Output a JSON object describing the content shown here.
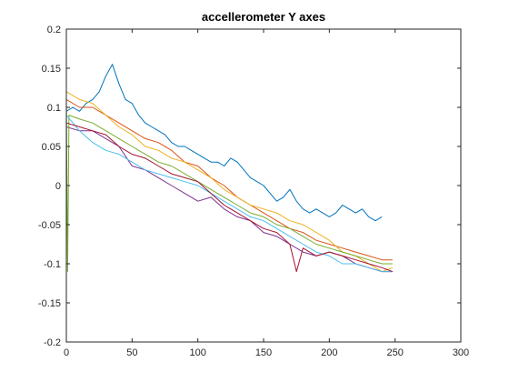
{
  "chart_data": {
    "type": "line",
    "title": "accellerometer Y axes",
    "xlabel": "",
    "ylabel": "",
    "xlim": [
      0,
      300
    ],
    "ylim": [
      -0.2,
      0.2
    ],
    "xticks": [
      0,
      50,
      100,
      150,
      200,
      250,
      300
    ],
    "yticks": [
      -0.2,
      -0.15,
      -0.1,
      -0.05,
      0,
      0.05,
      0.1,
      0.15,
      0.2
    ],
    "ytick_labels": [
      "-0.2",
      "-0.15",
      "-0.1",
      "-0.05",
      "0",
      "0.05",
      "0.1",
      "0.15",
      "0.2"
    ],
    "grid": false,
    "legend": "none",
    "series": [
      {
        "color": "#0072BD",
        "x": [
          0,
          5,
          10,
          15,
          20,
          25,
          30,
          35,
          40,
          45,
          50,
          55,
          60,
          65,
          70,
          75,
          80,
          85,
          90,
          95,
          100,
          105,
          110,
          115,
          120,
          125,
          130,
          135,
          140,
          145,
          150,
          155,
          160,
          165,
          170,
          175,
          180,
          185,
          190,
          195,
          200,
          205,
          210,
          215,
          220,
          225,
          230,
          235,
          240
        ],
        "y": [
          0.095,
          0.1,
          0.095,
          0.105,
          0.11,
          0.12,
          0.14,
          0.155,
          0.13,
          0.11,
          0.105,
          0.09,
          0.08,
          0.075,
          0.07,
          0.065,
          0.055,
          0.05,
          0.05,
          0.045,
          0.04,
          0.035,
          0.03,
          0.03,
          0.025,
          0.035,
          0.03,
          0.02,
          0.01,
          0.005,
          0.0,
          -0.01,
          -0.02,
          -0.015,
          -0.005,
          -0.02,
          -0.03,
          -0.035,
          -0.03,
          -0.035,
          -0.04,
          -0.035,
          -0.025,
          -0.03,
          -0.035,
          -0.03,
          -0.04,
          -0.045,
          -0.04
        ]
      },
      {
        "color": "#D95319",
        "x": [
          0,
          10,
          20,
          30,
          40,
          50,
          60,
          70,
          80,
          90,
          100,
          110,
          120,
          130,
          140,
          150,
          160,
          170,
          180,
          190,
          200,
          210,
          220,
          230,
          240,
          248
        ],
        "y": [
          0.11,
          0.1,
          0.1,
          0.09,
          0.08,
          0.07,
          0.06,
          0.055,
          0.045,
          0.03,
          0.025,
          0.01,
          0.0,
          -0.015,
          -0.025,
          -0.035,
          -0.045,
          -0.055,
          -0.06,
          -0.07,
          -0.075,
          -0.08,
          -0.085,
          -0.09,
          -0.095,
          -0.095
        ]
      },
      {
        "color": "#EDB120",
        "x": [
          0,
          10,
          20,
          30,
          40,
          50,
          60,
          70,
          80,
          90,
          100,
          110,
          120,
          130,
          140,
          150,
          160,
          170,
          180,
          190,
          200,
          210,
          220,
          230,
          240,
          248
        ],
        "y": [
          0.12,
          0.11,
          0.105,
          0.09,
          0.075,
          0.065,
          0.05,
          0.045,
          0.035,
          0.03,
          0.02,
          0.01,
          -0.005,
          -0.015,
          -0.025,
          -0.03,
          -0.035,
          -0.045,
          -0.05,
          -0.06,
          -0.07,
          -0.085,
          -0.09,
          -0.1,
          -0.11,
          -0.105
        ]
      },
      {
        "color": "#7E2F8E",
        "x": [
          0,
          10,
          20,
          30,
          40,
          50,
          60,
          70,
          80,
          90,
          100,
          110,
          120,
          130,
          140,
          150,
          160,
          170,
          180,
          190,
          200,
          210,
          220,
          230,
          240,
          248
        ],
        "y": [
          0.075,
          0.07,
          0.07,
          0.06,
          0.05,
          0.025,
          0.02,
          0.01,
          0.0,
          -0.01,
          -0.02,
          -0.015,
          -0.03,
          -0.04,
          -0.045,
          -0.06,
          -0.065,
          -0.075,
          -0.085,
          -0.09,
          -0.085,
          -0.09,
          -0.1,
          -0.105,
          -0.11,
          -0.11
        ]
      },
      {
        "color": "#77AC30",
        "x": [
          0,
          1,
          2,
          10,
          20,
          30,
          40,
          50,
          60,
          70,
          80,
          90,
          100,
          110,
          120,
          130,
          140,
          150,
          160,
          170,
          180,
          190,
          200,
          210,
          220,
          230,
          240,
          248
        ],
        "y": [
          0.11,
          -0.11,
          0.09,
          0.085,
          0.08,
          0.07,
          0.06,
          0.05,
          0.04,
          0.03,
          0.025,
          0.015,
          0.005,
          -0.005,
          -0.015,
          -0.025,
          -0.035,
          -0.04,
          -0.05,
          -0.055,
          -0.065,
          -0.075,
          -0.08,
          -0.085,
          -0.09,
          -0.095,
          -0.1,
          -0.1
        ]
      },
      {
        "color": "#4DBEEE",
        "x": [
          0,
          10,
          20,
          30,
          40,
          50,
          60,
          70,
          80,
          90,
          100,
          110,
          120,
          130,
          140,
          150,
          160,
          170,
          180,
          190,
          200,
          210,
          220,
          230,
          240,
          248
        ],
        "y": [
          0.09,
          0.07,
          0.055,
          0.045,
          0.04,
          0.03,
          0.02,
          0.015,
          0.01,
          0.005,
          0.0,
          -0.01,
          -0.02,
          -0.03,
          -0.04,
          -0.045,
          -0.055,
          -0.065,
          -0.075,
          -0.085,
          -0.09,
          -0.1,
          -0.1,
          -0.105,
          -0.11,
          -0.11
        ]
      },
      {
        "color": "#A2142F",
        "x": [
          0,
          10,
          20,
          30,
          40,
          50,
          60,
          70,
          80,
          90,
          100,
          110,
          120,
          130,
          140,
          150,
          160,
          170,
          175,
          180,
          190,
          200,
          210,
          220,
          230,
          240,
          248
        ],
        "y": [
          0.08,
          0.075,
          0.07,
          0.065,
          0.05,
          0.04,
          0.035,
          0.025,
          0.015,
          0.01,
          0.005,
          -0.01,
          -0.025,
          -0.035,
          -0.045,
          -0.055,
          -0.06,
          -0.075,
          -0.11,
          -0.08,
          -0.09,
          -0.085,
          -0.09,
          -0.095,
          -0.1,
          -0.105,
          -0.11
        ]
      }
    ]
  }
}
